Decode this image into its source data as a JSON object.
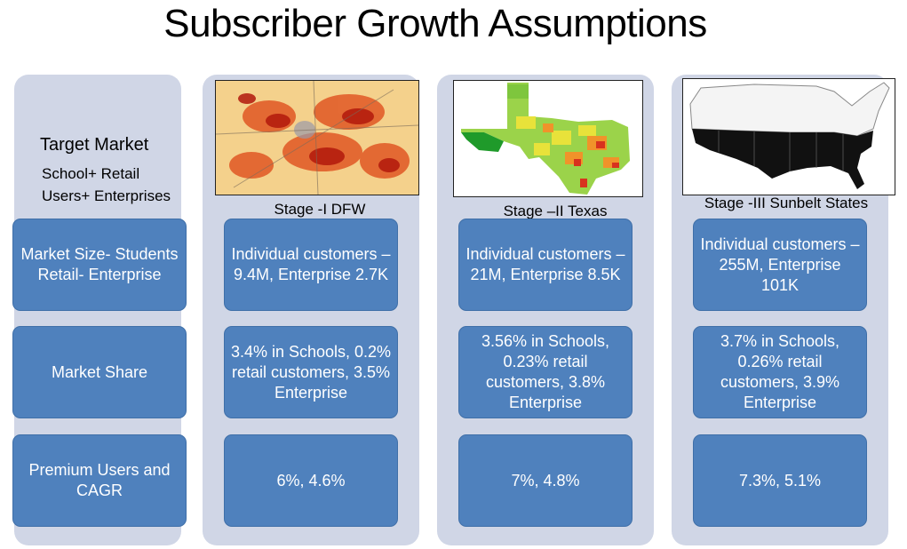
{
  "title": "Subscriber Growth Assumptions",
  "side": {
    "target_market": "Target Market",
    "segment_line1": "School+ Retail",
    "segment_line2": "Users+ Enterprises"
  },
  "rows": [
    {
      "label": "Market Size- Students Retail- Enterprise"
    },
    {
      "label": "Market Share"
    },
    {
      "label": "Premium Users and CAGR"
    }
  ],
  "stages": [
    {
      "name": "Stage -I DFW",
      "map_icon": "dfw-heatmap-image",
      "market_size": "Individual customers – 9.4M, Enterprise 2.7K",
      "market_share": "3.4% in Schools, 0.2% retail customers, 3.5% Enterprise",
      "premium": "6%, 4.6%"
    },
    {
      "name": "Stage –II Texas",
      "map_icon": "texas-heatmap-image",
      "market_size": "Individual customers – 21M, Enterprise 8.5K",
      "market_share": "3.56% in Schools, 0.23% retail customers, 3.8% Enterprise",
      "premium": "7%, 4.8%"
    },
    {
      "name": "Stage -III Sunbelt States",
      "map_icon": "sunbelt-states-map-image",
      "market_size": "Individual customers – 255M, Enterprise 101K",
      "market_share": "3.7% in Schools, 0.26% retail customers, 3.9% Enterprise",
      "premium": "7.3%, 5.1%"
    }
  ]
}
